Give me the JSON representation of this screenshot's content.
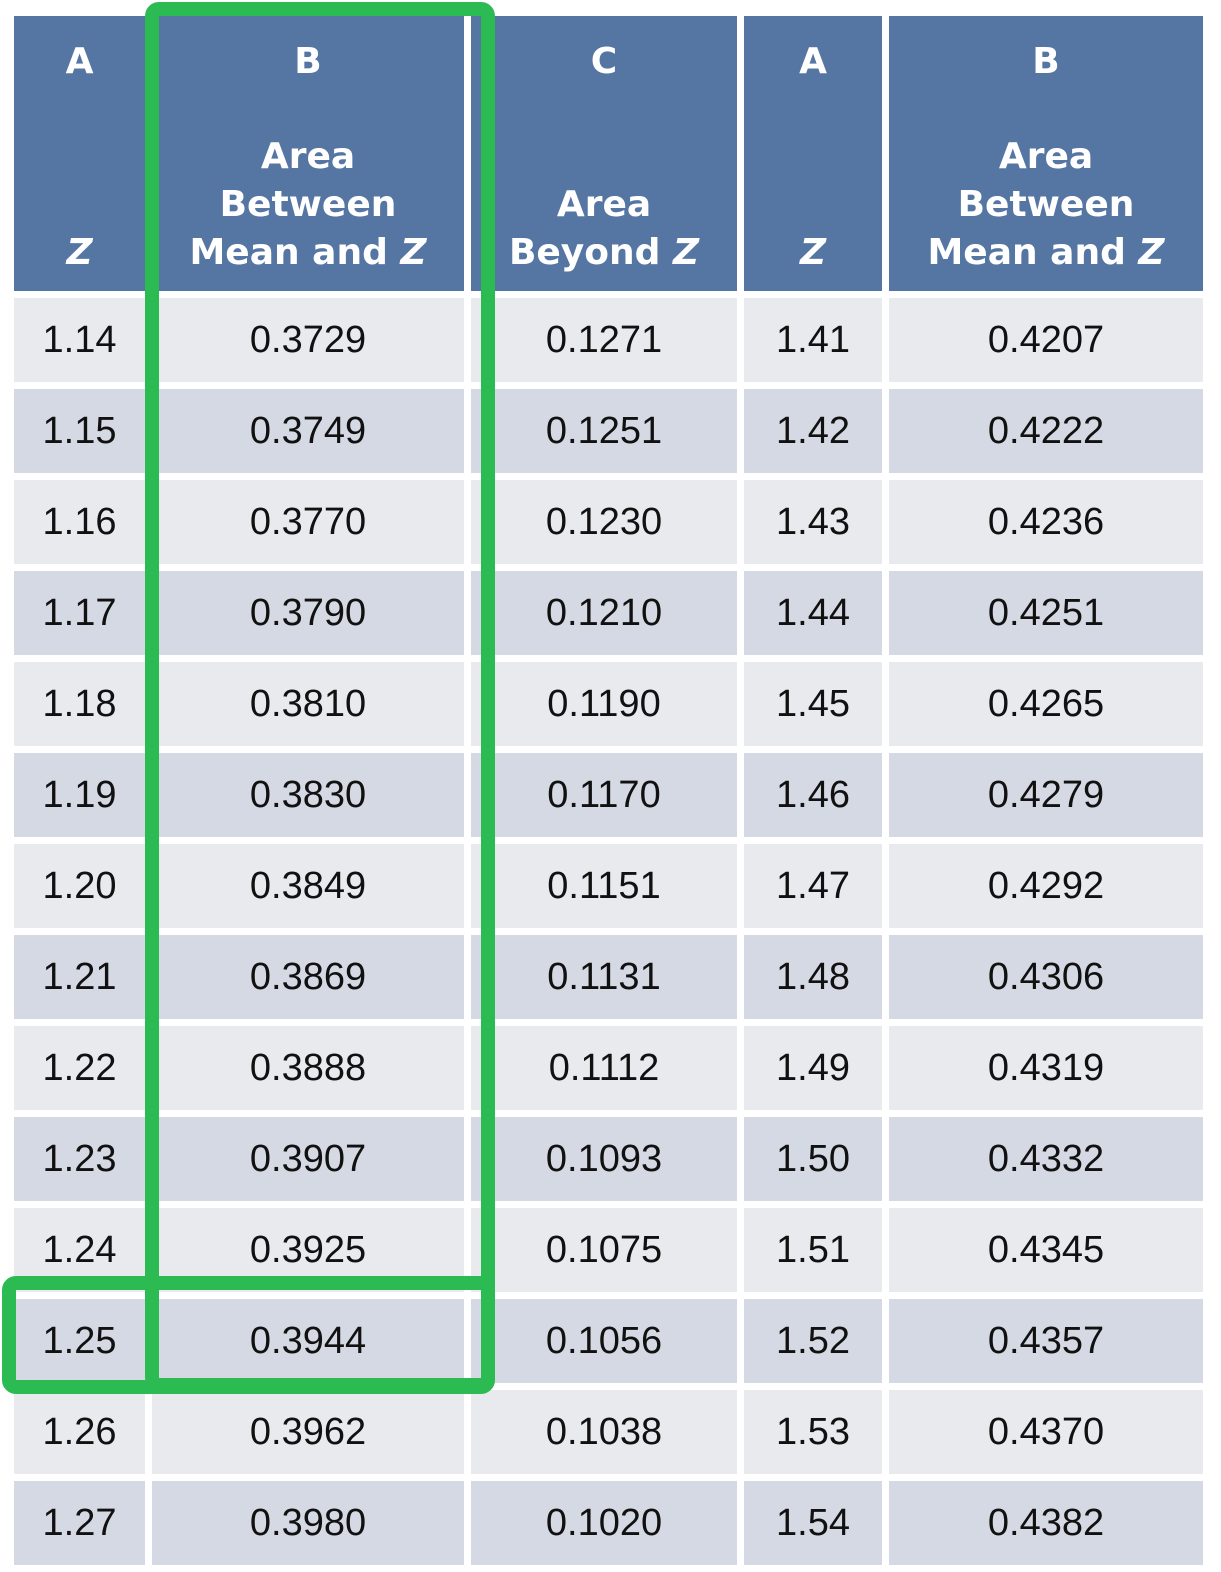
{
  "table": {
    "headers": [
      {
        "letter": "A",
        "label_pre": "",
        "label_z": "Z"
      },
      {
        "letter": "B",
        "label_pre": "Area\nBetween\nMean and ",
        "label_z": "Z"
      },
      {
        "letter": "C",
        "label_pre": "Area\nBeyond ",
        "label_z": "Z"
      },
      {
        "letter": "A",
        "label_pre": "",
        "label_z": "Z"
      },
      {
        "letter": "B",
        "label_pre": "Area\nBetween\nMean and ",
        "label_z": "Z"
      }
    ],
    "rows": [
      [
        "1.14",
        "0.3729",
        "0.1271",
        "1.41",
        "0.4207"
      ],
      [
        "1.15",
        "0.3749",
        "0.1251",
        "1.42",
        "0.4222"
      ],
      [
        "1.16",
        "0.3770",
        "0.1230",
        "1.43",
        "0.4236"
      ],
      [
        "1.17",
        "0.3790",
        "0.1210",
        "1.44",
        "0.4251"
      ],
      [
        "1.18",
        "0.3810",
        "0.1190",
        "1.45",
        "0.4265"
      ],
      [
        "1.19",
        "0.3830",
        "0.1170",
        "1.46",
        "0.4279"
      ],
      [
        "1.20",
        "0.3849",
        "0.1151",
        "1.47",
        "0.4292"
      ],
      [
        "1.21",
        "0.3869",
        "0.1131",
        "1.48",
        "0.4306"
      ],
      [
        "1.22",
        "0.3888",
        "0.1112",
        "1.49",
        "0.4319"
      ],
      [
        "1.23",
        "0.3907",
        "0.1093",
        "1.50",
        "0.4332"
      ],
      [
        "1.24",
        "0.3925",
        "0.1075",
        "1.51",
        "0.4345"
      ],
      [
        "1.25",
        "0.3944",
        "0.1056",
        "1.52",
        "0.4357"
      ],
      [
        "1.26",
        "0.3962",
        "0.1038",
        "1.53",
        "0.4370"
      ],
      [
        "1.27",
        "0.3980",
        "0.1020",
        "1.54",
        "0.4382"
      ]
    ]
  },
  "highlights": {
    "column": "B",
    "row_z": "1.25",
    "color": "#2cbb52"
  },
  "colors": {
    "header_bg": "#5575a3",
    "header_text": "#ffffff",
    "row_light": "#e9eaee",
    "row_dark": "#d5d9e3"
  }
}
